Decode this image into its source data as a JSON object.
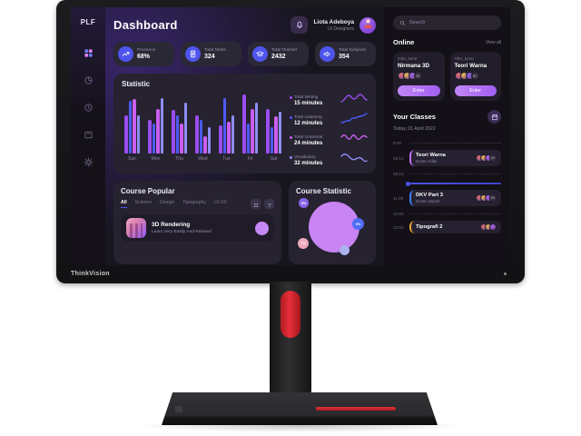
{
  "monitor": {
    "brand": "ThinkVision"
  },
  "sidebar": {
    "logo": "PLF",
    "items": [
      {
        "name": "dashboard",
        "icon": "grid-icon",
        "active": true
      },
      {
        "name": "analytics",
        "icon": "pie-icon",
        "active": false
      },
      {
        "name": "history",
        "icon": "clock-icon",
        "active": false
      },
      {
        "name": "archive",
        "icon": "archive-icon",
        "active": false
      },
      {
        "name": "settings",
        "icon": "gear-icon",
        "active": false
      }
    ]
  },
  "header": {
    "title": "Dashboard",
    "notification_icon": "bell-icon",
    "user_name": "Liota Adeboya",
    "user_role": "UI Designers"
  },
  "stats": [
    {
      "label": "Presence",
      "value": "68%",
      "icon": "trend-icon"
    },
    {
      "label": "Total Tasks",
      "value": "324",
      "icon": "tasks-icon"
    },
    {
      "label": "Total Teacher",
      "value": "2432",
      "icon": "teacher-icon"
    },
    {
      "label": "Total Subjects",
      "value": "354",
      "icon": "megaphone-icon"
    }
  ],
  "statistic": {
    "title": "Statistic",
    "legend": [
      {
        "label": "Total Writing",
        "value": "15 minutes",
        "color": "#9b4df0"
      },
      {
        "label": "Total Listening",
        "value": "12 minutes",
        "color": "#4d5bf5"
      },
      {
        "label": "Total Grammar",
        "value": "24 minutes",
        "color": "#cb5ef0"
      },
      {
        "label": "Vocabulary",
        "value": "32 minutes",
        "color": "#8f8df5"
      }
    ]
  },
  "chart_data": {
    "type": "bar",
    "title": "Statistic",
    "categories": [
      "Sun",
      "Mon",
      "Thu",
      "Wed",
      "Tue",
      "Fri",
      "Sat"
    ],
    "unit": "minutes",
    "ylim": [
      0,
      100
    ],
    "grid": false,
    "legend_position": "right",
    "series": [
      {
        "name": "Total Writing",
        "color": "#9b4df0",
        "values": [
          62,
          55,
          70,
          62,
          45,
          95,
          72
        ]
      },
      {
        "name": "Total Listening",
        "color": "#4d5bf5",
        "values": [
          85,
          48,
          62,
          55,
          90,
          48,
          42
        ]
      },
      {
        "name": "Total Grammar",
        "color": "#cb5ef0",
        "values": [
          88,
          72,
          48,
          28,
          52,
          72,
          60
        ]
      },
      {
        "name": "Vocabulary",
        "color": "#8f8df5",
        "values": [
          62,
          90,
          82,
          42,
          62,
          82,
          68
        ]
      }
    ]
  },
  "course_popular": {
    "title": "Course Popular",
    "tabs": [
      "All",
      "Science",
      "Design",
      "Tipography",
      "UI UX"
    ],
    "active_tab": "All",
    "action_icons": [
      "grid-small-icon",
      "filter-icon"
    ],
    "course": {
      "title": "3D Rendering",
      "subtitle": "Learn Very Easily And Relaxed"
    }
  },
  "course_statistic": {
    "title": "Course Statistic",
    "bubbles": [
      {
        "label": "",
        "color": "#c884f2"
      },
      {
        "label": "5%",
        "color": "#8a63e8"
      },
      {
        "label": "9%",
        "color": "#4f6df5"
      },
      {
        "label": "7%",
        "color": "#efa9bd"
      },
      {
        "label": "",
        "color": "#aab2f0"
      }
    ]
  },
  "right_panel": {
    "search_placeholder": "Search",
    "search_icon": "search-icon",
    "online": {
      "title": "Online",
      "view_all": "View all",
      "rooms": [
        {
          "tag": "#dkv_berat",
          "name": "Nirmana 3D",
          "extra": "3+",
          "button": "Enter"
        },
        {
          "tag": "#dkv_berat",
          "name": "Teori Warna",
          "extra": "4+",
          "button": "Enter"
        }
      ]
    },
    "classes": {
      "title": "Your Classes",
      "date": "Today, 01 April 2022",
      "calendar_icon": "calendar-icon",
      "timeline": [
        {
          "type": "time",
          "time": "9:00"
        },
        {
          "type": "class",
          "time": "09:13",
          "name": "Teori Warna",
          "teacher": "Dosen Killer",
          "color": "#c26ef5",
          "extra": "1+"
        },
        {
          "type": "time",
          "time": "09:15"
        },
        {
          "type": "now"
        },
        {
          "type": "class",
          "time": "11:00",
          "name": "DKV Part 3",
          "teacher": "Dosen Sepuh",
          "color": "#3f7df0",
          "extra": "2+"
        },
        {
          "type": "time",
          "time": "12:00"
        },
        {
          "type": "class",
          "time": "13:00",
          "name": "Tipografi 2",
          "teacher": "",
          "color": "#f0a432",
          "extra": ""
        }
      ]
    }
  },
  "colors": {
    "accent_blue": "#4d55ec",
    "accent_purple": "#b879f5",
    "now_line": "#4a52e8"
  }
}
